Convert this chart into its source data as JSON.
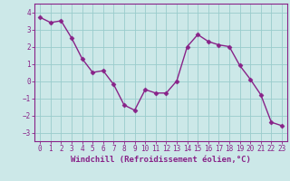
{
  "x": [
    0,
    1,
    2,
    3,
    4,
    5,
    6,
    7,
    8,
    9,
    10,
    11,
    12,
    13,
    14,
    15,
    16,
    17,
    18,
    19,
    20,
    21,
    22,
    23
  ],
  "y": [
    3.7,
    3.4,
    3.5,
    2.5,
    1.3,
    0.5,
    0.6,
    -0.2,
    -1.4,
    -1.7,
    -0.5,
    -0.7,
    -0.7,
    0.0,
    2.0,
    2.7,
    2.3,
    2.1,
    2.0,
    0.9,
    0.1,
    -0.8,
    -2.4,
    -2.6
  ],
  "line_color": "#882288",
  "marker": "D",
  "markersize": 2.5,
  "linewidth": 1.0,
  "bg_color": "#cce8e8",
  "grid_color": "#99cccc",
  "xlabel": "Windchill (Refroidissement éolien,°C)",
  "ylim": [
    -3.5,
    4.5
  ],
  "xlim": [
    -0.5,
    23.5
  ],
  "yticks": [
    -3,
    -2,
    -1,
    0,
    1,
    2,
    3,
    4
  ],
  "xticks": [
    0,
    1,
    2,
    3,
    4,
    5,
    6,
    7,
    8,
    9,
    10,
    11,
    12,
    13,
    14,
    15,
    16,
    17,
    18,
    19,
    20,
    21,
    22,
    23
  ],
  "tick_fontsize": 5.5,
  "xlabel_fontsize": 6.5,
  "axis_color": "#882288"
}
